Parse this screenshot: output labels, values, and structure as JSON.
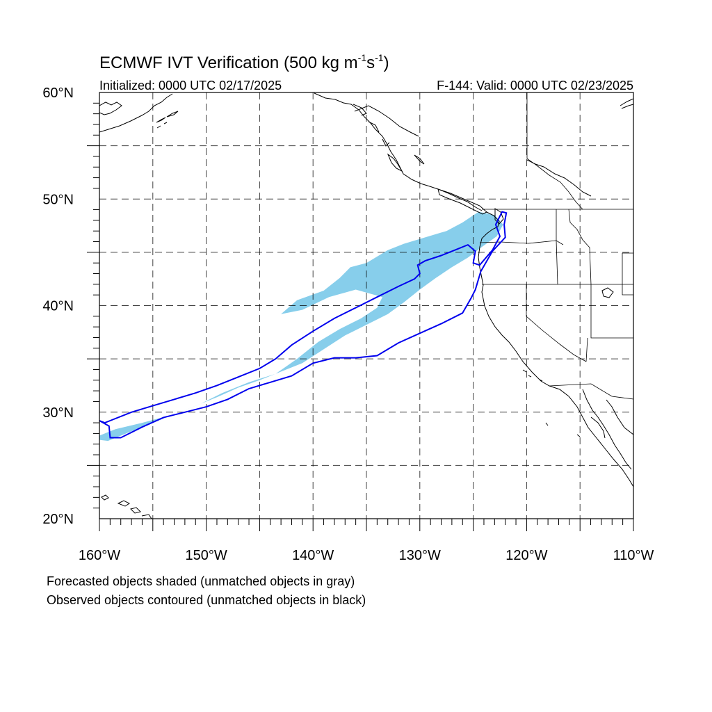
{
  "title": {
    "main": "ECMWF IVT Verification (500 kg m",
    "exp1": "-1",
    "mid": "s",
    "exp2": "-1",
    "end": ")"
  },
  "subtitle": {
    "left": "Initialized: 0000 UTC 02/17/2025",
    "right": "F-144: Valid: 0000 UTC 02/23/2025"
  },
  "axes": {
    "lon_range": [
      -160,
      -110
    ],
    "lat_range": [
      20,
      60
    ],
    "lon_ticks": [
      {
        "value": -160,
        "label": "160°W"
      },
      {
        "value": -150,
        "label": "150°W"
      },
      {
        "value": -140,
        "label": "140°W"
      },
      {
        "value": -130,
        "label": "130°W"
      },
      {
        "value": -120,
        "label": "120°W"
      },
      {
        "value": -110,
        "label": "110°W"
      }
    ],
    "lat_ticks": [
      {
        "value": 20,
        "label": "20°N"
      },
      {
        "value": 30,
        "label": "30°N"
      },
      {
        "value": 40,
        "label": "40°N"
      },
      {
        "value": 50,
        "label": "50°N"
      },
      {
        "value": 60,
        "label": "60°N"
      }
    ],
    "grid_lon": [
      -155,
      -150,
      -145,
      -140,
      -135,
      -130,
      -125,
      -120,
      -115
    ],
    "grid_lat": [
      25,
      30,
      35,
      40,
      45,
      50,
      55
    ]
  },
  "colors": {
    "forecast_fill": "#87ceeb",
    "observed_contour": "#0000ee",
    "map_lines": "#000000"
  },
  "objects": {
    "forecast_shaded": [
      [
        -160,
        27.8
      ],
      [
        -158.5,
        28.4
      ],
      [
        -156,
        29
      ],
      [
        -153,
        29.8
      ],
      [
        -150.5,
        30.8
      ],
      [
        -148.5,
        31.8
      ],
      [
        -146,
        32.8
      ],
      [
        -143.5,
        33.6
      ],
      [
        -141.5,
        35
      ],
      [
        -139.5,
        36.6
      ],
      [
        -137.5,
        37.8
      ],
      [
        -135.5,
        38.8
      ],
      [
        -134,
        39.8
      ],
      [
        -133.5,
        40.8
      ],
      [
        -136,
        41.5
      ],
      [
        -138.5,
        40.8
      ],
      [
        -141,
        39.6
      ],
      [
        -143,
        39.2
      ],
      [
        -141.5,
        40.5
      ],
      [
        -139,
        41.4
      ],
      [
        -137.5,
        42.6
      ],
      [
        -136.5,
        43.6
      ],
      [
        -135,
        44
      ],
      [
        -133,
        45.2
      ],
      [
        -131.5,
        45.8
      ],
      [
        -129.5,
        46.4
      ],
      [
        -127.5,
        47
      ],
      [
        -126,
        47.8
      ],
      [
        -124.5,
        48.8
      ],
      [
        -123,
        48.5
      ],
      [
        -122.2,
        47.6
      ],
      [
        -122.8,
        46.5
      ],
      [
        -124.2,
        45.5
      ],
      [
        -125.5,
        44.5
      ],
      [
        -127,
        43.6
      ],
      [
        -128.5,
        42.6
      ],
      [
        -130,
        41.5
      ],
      [
        -131.5,
        40.3
      ],
      [
        -133,
        39.2
      ],
      [
        -135,
        38.2
      ],
      [
        -137,
        37.2
      ],
      [
        -139,
        35.9
      ],
      [
        -141,
        34.6
      ],
      [
        -143,
        33.8
      ],
      [
        -145,
        33
      ],
      [
        -147,
        32.3
      ],
      [
        -149,
        31.4
      ],
      [
        -151,
        30.6
      ],
      [
        -153,
        29.8
      ],
      [
        -155.5,
        28.8
      ],
      [
        -157.5,
        28
      ],
      [
        -159.2,
        27.3
      ],
      [
        -160,
        27.4
      ]
    ],
    "observed_contour": [
      [
        -160,
        29.2
      ],
      [
        -159.5,
        29
      ],
      [
        -159,
        29.2
      ],
      [
        -157,
        30
      ],
      [
        -155,
        30.6
      ],
      [
        -153,
        31.2
      ],
      [
        -151,
        31.8
      ],
      [
        -149,
        32.5
      ],
      [
        -147,
        33.3
      ],
      [
        -145,
        34.1
      ],
      [
        -143.5,
        35
      ],
      [
        -142,
        36.3
      ],
      [
        -140,
        37.6
      ],
      [
        -138,
        38.8
      ],
      [
        -136,
        39.8
      ],
      [
        -134,
        40.8
      ],
      [
        -132,
        41.8
      ],
      [
        -130.5,
        42.5
      ],
      [
        -130,
        43
      ],
      [
        -130.2,
        43.8
      ],
      [
        -129.5,
        44.2
      ],
      [
        -128,
        44.7
      ],
      [
        -126.5,
        45.3
      ],
      [
        -125.5,
        45.7
      ],
      [
        -124.8,
        45.1
      ],
      [
        -125,
        44
      ],
      [
        -124.4,
        43.8
      ],
      [
        -123.2,
        45.2
      ],
      [
        -122.5,
        46.5
      ],
      [
        -122.9,
        47.6
      ],
      [
        -122.3,
        48.8
      ],
      [
        -121.9,
        48.7
      ],
      [
        -122.1,
        47.6
      ],
      [
        -122,
        46.4
      ],
      [
        -123.2,
        45.1
      ],
      [
        -124.3,
        43.2
      ],
      [
        -124.8,
        41.5
      ],
      [
        -125.2,
        40.7
      ],
      [
        -126,
        39.3
      ],
      [
        -128,
        38.3
      ],
      [
        -130,
        37.4
      ],
      [
        -132,
        36.5
      ],
      [
        -134,
        35.3
      ],
      [
        -136,
        35.1
      ],
      [
        -138,
        35.1
      ],
      [
        -140,
        34.6
      ],
      [
        -142,
        33.4
      ],
      [
        -144,
        32.8
      ],
      [
        -146,
        32.2
      ],
      [
        -148,
        31.2
      ],
      [
        -150,
        30.5
      ],
      [
        -152,
        30
      ],
      [
        -154,
        29.5
      ],
      [
        -156,
        28.6
      ],
      [
        -158,
        27.6
      ],
      [
        -159,
        27.6
      ],
      [
        -159.1,
        28.7
      ],
      [
        -160,
        29.2
      ]
    ]
  },
  "notes": {
    "line1": "Forecasted objects shaded (unmatched objects in gray)",
    "line2": "Observed objects contoured (unmatched objects in black)"
  }
}
